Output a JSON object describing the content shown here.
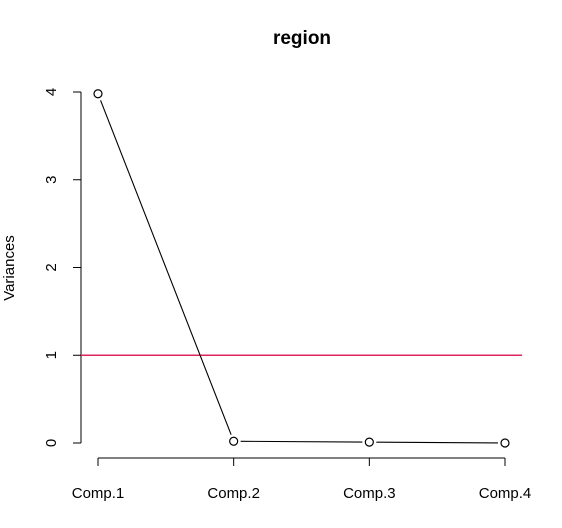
{
  "chart_data": {
    "type": "line",
    "title": "region",
    "xlabel": "",
    "ylabel": "Variances",
    "categories": [
      "Comp.1",
      "Comp.2",
      "Comp.3",
      "Comp.4"
    ],
    "values": [
      3.98,
      0.02,
      0.01,
      0.0
    ],
    "ylim": [
      0,
      4
    ],
    "yticks": [
      "0",
      "1",
      "2",
      "3",
      "4"
    ],
    "reference_line": {
      "y": 1,
      "color": "#e0245e"
    },
    "line_color": "#000000",
    "marker": "open-circle",
    "grid": false
  }
}
